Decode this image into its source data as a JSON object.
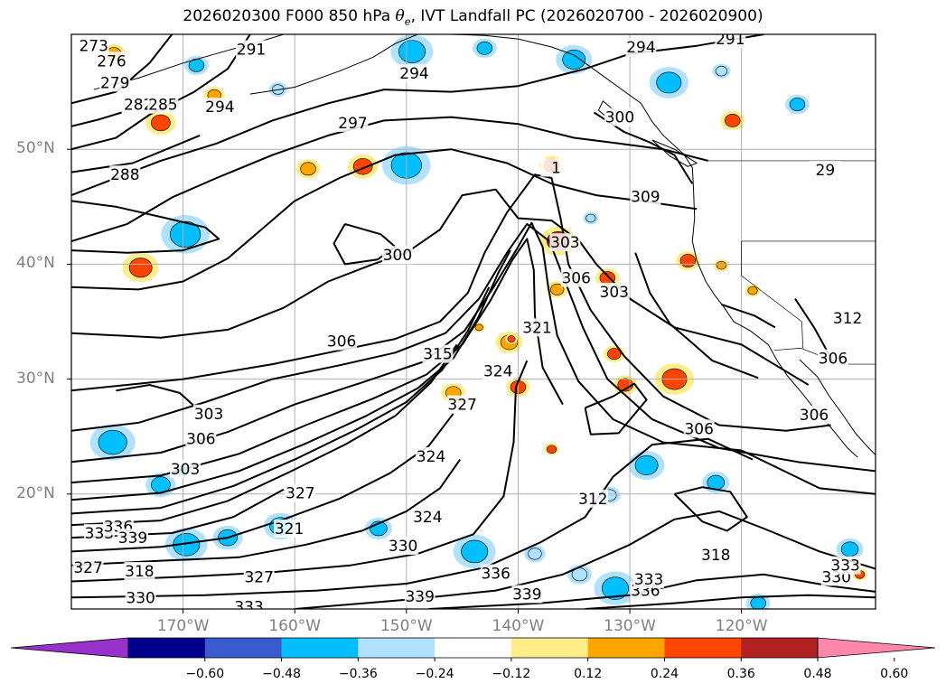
{
  "title": {
    "prefix": "2026020300 F000 850 hPa ",
    "symbol": "θ",
    "subscript": "e",
    "suffix": ", IVT Landfall PC (2026020700 - 2026020900)"
  },
  "map": {
    "projection": "PlateCarree",
    "lon_range": [
      -180,
      -108
    ],
    "lat_range": [
      10,
      60
    ],
    "lat_ticks": [
      {
        "value": 50,
        "label": "50°N"
      },
      {
        "value": 40,
        "label": "40°N"
      },
      {
        "value": 30,
        "label": "30°N"
      },
      {
        "value": 20,
        "label": "20°N"
      }
    ],
    "lon_ticks": [
      {
        "value": -170,
        "label": "170°W"
      },
      {
        "value": -160,
        "label": "160°W"
      },
      {
        "value": -150,
        "label": "150°W"
      },
      {
        "value": -140,
        "label": "140°W"
      },
      {
        "value": -130,
        "label": "130°W"
      },
      {
        "value": -120,
        "label": "120°W"
      }
    ],
    "gridlines": true,
    "contour_field": "850 hPa theta-e (K)",
    "contour_labels": [
      {
        "text": "273",
        "lon": -178.0,
        "lat": 59.0
      },
      {
        "text": "276",
        "lon": -176.4,
        "lat": 57.7
      },
      {
        "text": "279",
        "lon": -176.1,
        "lat": 55.8
      },
      {
        "text": "282",
        "lon": -174.0,
        "lat": 53.9
      },
      {
        "text": "285",
        "lon": -171.8,
        "lat": 53.9
      },
      {
        "text": "288",
        "lon": -175.2,
        "lat": 47.8
      },
      {
        "text": "291",
        "lon": -163.9,
        "lat": 58.7
      },
      {
        "text": "294",
        "lon": -166.7,
        "lat": 53.7
      },
      {
        "text": "294",
        "lon": -149.3,
        "lat": 56.6
      },
      {
        "text": "294",
        "lon": -129.0,
        "lat": 58.9
      },
      {
        "text": "291",
        "lon": -121.0,
        "lat": 59.6
      },
      {
        "text": "297",
        "lon": -154.8,
        "lat": 52.3
      },
      {
        "text": "300",
        "lon": -130.9,
        "lat": 52.8
      },
      {
        "text": "300",
        "lon": -150.8,
        "lat": 40.8
      },
      {
        "text": "309",
        "lon": -128.6,
        "lat": 45.9
      },
      {
        "text": "303",
        "lon": -135.8,
        "lat": 41.9
      },
      {
        "text": "306",
        "lon": -134.8,
        "lat": 38.8
      },
      {
        "text": "303",
        "lon": -131.4,
        "lat": 37.6
      },
      {
        "text": "312",
        "lon": -110.5,
        "lat": 35.3
      },
      {
        "text": "306",
        "lon": -111.8,
        "lat": 31.8
      },
      {
        "text": "306",
        "lon": -155.8,
        "lat": 33.3
      },
      {
        "text": "315",
        "lon": -147.2,
        "lat": 32.2
      },
      {
        "text": "321",
        "lon": -138.3,
        "lat": 34.5
      },
      {
        "text": "324",
        "lon": -141.8,
        "lat": 30.7
      },
      {
        "text": "327",
        "lon": -145.0,
        "lat": 27.8
      },
      {
        "text": "324",
        "lon": -147.8,
        "lat": 23.3
      },
      {
        "text": "303",
        "lon": -167.7,
        "lat": 27.0
      },
      {
        "text": "306",
        "lon": -168.4,
        "lat": 24.8
      },
      {
        "text": "303",
        "lon": -169.8,
        "lat": 22.2
      },
      {
        "text": "306",
        "lon": -123.8,
        "lat": 25.7
      },
      {
        "text": "306",
        "lon": -113.5,
        "lat": 26.9
      },
      {
        "text": "312",
        "lon": -133.3,
        "lat": 19.6
      },
      {
        "text": "318",
        "lon": -122.3,
        "lat": 14.7
      },
      {
        "text": "321",
        "lon": -160.5,
        "lat": 17.0
      },
      {
        "text": "324",
        "lon": -148.1,
        "lat": 18.0
      },
      {
        "text": "327",
        "lon": -159.5,
        "lat": 20.1
      },
      {
        "text": "330",
        "lon": -150.3,
        "lat": 15.5
      },
      {
        "text": "333",
        "lon": -177.5,
        "lat": 16.6
      },
      {
        "text": "336",
        "lon": -175.8,
        "lat": 17.2
      },
      {
        "text": "339",
        "lon": -174.5,
        "lat": 16.2
      },
      {
        "text": "336",
        "lon": -142.0,
        "lat": 13.1
      },
      {
        "text": "339",
        "lon": -148.8,
        "lat": 11.1
      },
      {
        "text": "339",
        "lon": -139.2,
        "lat": 11.3
      },
      {
        "text": "336",
        "lon": -128.6,
        "lat": 11.6
      },
      {
        "text": "333",
        "lon": -128.3,
        "lat": 12.6
      },
      {
        "text": "327",
        "lon": -178.5,
        "lat": 13.6
      },
      {
        "text": "318",
        "lon": -173.9,
        "lat": 13.3
      },
      {
        "text": "327",
        "lon": -163.2,
        "lat": 12.8
      },
      {
        "text": "330",
        "lon": -173.8,
        "lat": 11.0
      },
      {
        "text": "333",
        "lon": -164.1,
        "lat": 10.2
      },
      {
        "text": "330",
        "lon": -111.5,
        "lat": 12.8
      },
      {
        "text": "333",
        "lon": -110.7,
        "lat": 13.8
      },
      {
        "text": "29",
        "lon": -112.5,
        "lat": 48.2
      },
      {
        "text": "1",
        "lon": -136.6,
        "lat": 48.4
      }
    ]
  },
  "colorbar": {
    "ticks": [
      "−0.60",
      "−0.48",
      "−0.36",
      "−0.24",
      "−0.12",
      "0.12",
      "0.24",
      "0.36",
      "0.48",
      "0.60"
    ],
    "bounds": [
      -0.72,
      -0.6,
      -0.48,
      -0.36,
      -0.24,
      -0.12,
      0.12,
      0.24,
      0.36,
      0.48,
      0.6,
      0.72
    ],
    "colors": [
      "#9932cc",
      "#00008b",
      "#3a5bd0",
      "#00bfff",
      "#b0e2ff",
      "#ffffff",
      "#ffed8a",
      "#ffa500",
      "#ff4500",
      "#b22222",
      "#ff88aa"
    ],
    "extend": "both"
  },
  "shaded_blobs": [
    {
      "lon": -176.2,
      "lat": 58.3,
      "r": 0.8,
      "value": 0.24
    },
    {
      "lon": -168.8,
      "lat": 57.3,
      "r": 0.8,
      "value": -0.36
    },
    {
      "lon": -167.2,
      "lat": 54.7,
      "r": 0.7,
      "value": 0.3
    },
    {
      "lon": -161.5,
      "lat": 55.2,
      "r": 0.6,
      "value": -0.24
    },
    {
      "lon": -172.0,
      "lat": 52.3,
      "r": 1.0,
      "value": 0.36
    },
    {
      "lon": -149.5,
      "lat": 58.5,
      "r": 1.4,
      "value": -0.36
    },
    {
      "lon": -143.0,
      "lat": 58.8,
      "r": 0.8,
      "value": -0.3
    },
    {
      "lon": -135.0,
      "lat": 57.8,
      "r": 1.2,
      "value": -0.36
    },
    {
      "lon": -126.5,
      "lat": 55.8,
      "r": 1.3,
      "value": -0.36
    },
    {
      "lon": -121.8,
      "lat": 56.8,
      "r": 0.6,
      "value": -0.24
    },
    {
      "lon": -115.0,
      "lat": 53.9,
      "r": 0.8,
      "value": -0.36
    },
    {
      "lon": -120.8,
      "lat": 52.5,
      "r": 0.8,
      "value": 0.36
    },
    {
      "lon": -158.8,
      "lat": 48.3,
      "r": 0.8,
      "value": 0.24
    },
    {
      "lon": -153.9,
      "lat": 48.5,
      "r": 1.0,
      "value": 0.36
    },
    {
      "lon": -150.0,
      "lat": 48.6,
      "r": 1.6,
      "value": -0.3
    },
    {
      "lon": -137.0,
      "lat": 48.6,
      "r": 0.8,
      "value": 0.36
    },
    {
      "lon": -133.5,
      "lat": 44.0,
      "r": 0.5,
      "value": -0.24
    },
    {
      "lon": -169.8,
      "lat": 42.6,
      "r": 1.6,
      "value": -0.36
    },
    {
      "lon": -173.8,
      "lat": 39.7,
      "r": 1.2,
      "value": 0.36
    },
    {
      "lon": -136.4,
      "lat": 42.0,
      "r": 1.2,
      "value": 0.48
    },
    {
      "lon": -136.5,
      "lat": 37.8,
      "r": 0.7,
      "value": 0.3
    },
    {
      "lon": -132.0,
      "lat": 38.8,
      "r": 0.8,
      "value": 0.36
    },
    {
      "lon": -124.8,
      "lat": 40.3,
      "r": 0.8,
      "value": 0.36
    },
    {
      "lon": -121.8,
      "lat": 39.9,
      "r": 0.5,
      "value": 0.24
    },
    {
      "lon": -119.0,
      "lat": 37.7,
      "r": 0.5,
      "value": 0.24
    },
    {
      "lon": -140.8,
      "lat": 33.2,
      "r": 0.9,
      "value": 0.24
    },
    {
      "lon": -145.8,
      "lat": 28.8,
      "r": 0.8,
      "value": 0.3
    },
    {
      "lon": -140.0,
      "lat": 29.3,
      "r": 0.8,
      "value": 0.36
    },
    {
      "lon": -131.4,
      "lat": 32.2,
      "r": 0.7,
      "value": 0.36
    },
    {
      "lon": -130.4,
      "lat": 29.5,
      "r": 0.8,
      "value": 0.36
    },
    {
      "lon": -126.0,
      "lat": 30.0,
      "r": 1.3,
      "value": 0.42
    },
    {
      "lon": -137.0,
      "lat": 23.9,
      "r": 0.5,
      "value": 0.36
    },
    {
      "lon": -131.8,
      "lat": 19.9,
      "r": 0.7,
      "value": -0.24
    },
    {
      "lon": -128.5,
      "lat": 22.5,
      "r": 1.2,
      "value": -0.36
    },
    {
      "lon": -122.3,
      "lat": 21.0,
      "r": 0.9,
      "value": -0.36
    },
    {
      "lon": -176.3,
      "lat": 24.5,
      "r": 1.5,
      "value": -0.36
    },
    {
      "lon": -170.0,
      "lat": 22.0,
      "r": 0.6,
      "value": -0.36
    },
    {
      "lon": -172.0,
      "lat": 20.8,
      "r": 1.0,
      "value": -0.3
    },
    {
      "lon": -169.7,
      "lat": 15.6,
      "r": 1.4,
      "value": -0.36
    },
    {
      "lon": -166.0,
      "lat": 16.2,
      "r": 1.0,
      "value": -0.3
    },
    {
      "lon": -161.3,
      "lat": 17.2,
      "r": 1.1,
      "value": -0.36
    },
    {
      "lon": -152.5,
      "lat": 17.0,
      "r": 0.9,
      "value": -0.36
    },
    {
      "lon": -143.9,
      "lat": 15.0,
      "r": 1.4,
      "value": -0.36
    },
    {
      "lon": -138.5,
      "lat": 14.8,
      "r": 0.7,
      "value": -0.24
    },
    {
      "lon": -134.5,
      "lat": 13.0,
      "r": 0.8,
      "value": -0.24
    },
    {
      "lon": -131.3,
      "lat": 11.8,
      "r": 1.4,
      "value": -0.36
    },
    {
      "lon": -118.5,
      "lat": 10.5,
      "r": 0.8,
      "value": -0.36
    },
    {
      "lon": -110.3,
      "lat": 15.2,
      "r": 0.9,
      "value": -0.36
    },
    {
      "lon": -109.4,
      "lat": 13.0,
      "r": 0.5,
      "value": 0.36
    },
    {
      "lon": -140.6,
      "lat": 33.5,
      "r": 0.4,
      "value": 0.36
    },
    {
      "lon": -143.5,
      "lat": 34.5,
      "r": 0.4,
      "value": 0.24
    }
  ]
}
